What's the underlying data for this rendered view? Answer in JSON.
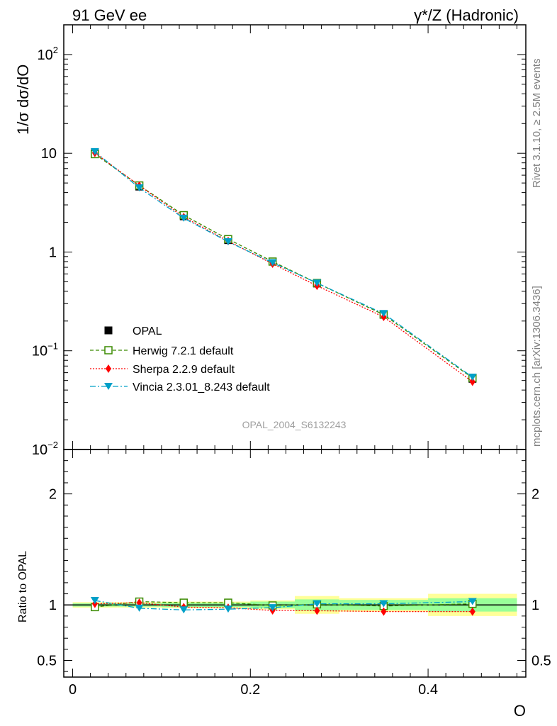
{
  "header": {
    "left": "91 GeV ee",
    "right": "γ*/Z (Hadronic)"
  },
  "side": {
    "rivet": "Rivet 3.1.10, ≥ 2.5M events",
    "mcplots": "mcplots.cern.ch [arXiv:1306.3436]"
  },
  "analysis_id": "OPAL_2004_S6132243",
  "colors": {
    "data": "#000000",
    "herwig": "#3a8a00",
    "sherpa": "#ff0000",
    "vincia": "#00a0c8",
    "band_outer": "#ffff99",
    "band_inner": "#99ff99"
  },
  "chart_data": [
    {
      "type": "line",
      "panel": "main",
      "ylabel": "1/σ dσ/dO",
      "yscale": "log",
      "ylim": [
        0.01,
        200
      ],
      "xlim": [
        -0.01,
        0.51
      ],
      "ytick_labels": [
        "10^-2",
        "10^-1",
        "1",
        "10",
        "10^2"
      ],
      "x": [
        0.025,
        0.075,
        0.125,
        0.175,
        0.225,
        0.275,
        0.35,
        0.45
      ],
      "series": [
        {
          "name": "OPAL",
          "key": "data",
          "values": [
            10.0,
            4.6,
            2.3,
            1.32,
            0.8,
            0.48,
            0.235,
            0.052
          ]
        },
        {
          "name": "Herwig 7.2.1 default",
          "key": "herwig",
          "values": [
            9.8,
            4.72,
            2.36,
            1.35,
            0.8,
            0.485,
            0.232,
            0.053
          ]
        },
        {
          "name": "Sherpa 2.2.9 default",
          "key": "sherpa",
          "values": [
            10.1,
            4.7,
            2.26,
            1.29,
            0.76,
            0.455,
            0.22,
            0.0485
          ]
        },
        {
          "name": "Vincia 2.3.01_8.243 default",
          "key": "vincia",
          "values": [
            10.4,
            4.46,
            2.2,
            1.27,
            0.78,
            0.485,
            0.238,
            0.054
          ]
        }
      ]
    },
    {
      "type": "line",
      "panel": "ratio",
      "ylabel": "Ratio to OPAL",
      "xlabel": "O",
      "ylim": [
        0.35,
        2.4
      ],
      "yticks": [
        0.5,
        1,
        2
      ],
      "ytick_labels": [
        "0.5",
        "1",
        "2"
      ],
      "xticks": [
        0,
        0.2,
        0.4
      ],
      "xtick_labels": [
        "0",
        "0.2",
        "0.4"
      ],
      "x": [
        0.025,
        0.075,
        0.125,
        0.175,
        0.225,
        0.275,
        0.35,
        0.45
      ],
      "bins": [
        [
          0,
          0.05
        ],
        [
          0.05,
          0.1
        ],
        [
          0.1,
          0.15
        ],
        [
          0.15,
          0.2
        ],
        [
          0.2,
          0.25
        ],
        [
          0.25,
          0.3
        ],
        [
          0.3,
          0.4
        ],
        [
          0.4,
          0.5
        ]
      ],
      "band_inner": [
        0.015,
        0.015,
        0.02,
        0.02,
        0.03,
        0.05,
        0.045,
        0.06
      ],
      "band_outer": [
        0.025,
        0.025,
        0.03,
        0.03,
        0.04,
        0.08,
        0.06,
        0.1
      ],
      "series": [
        {
          "name": "Herwig 7.2.1 default",
          "key": "herwig",
          "values": [
            0.98,
            1.03,
            1.02,
            1.02,
            0.995,
            1.005,
            0.99,
            1.01
          ]
        },
        {
          "name": "Sherpa 2.2.9 default",
          "key": "sherpa",
          "values": [
            1.01,
            1.02,
            0.98,
            0.975,
            0.95,
            0.948,
            0.94,
            0.94
          ]
        },
        {
          "name": "Vincia 2.3.01_8.243 default",
          "key": "vincia",
          "values": [
            1.04,
            0.97,
            0.955,
            0.962,
            0.975,
            1.01,
            1.01,
            1.03
          ]
        }
      ]
    }
  ]
}
